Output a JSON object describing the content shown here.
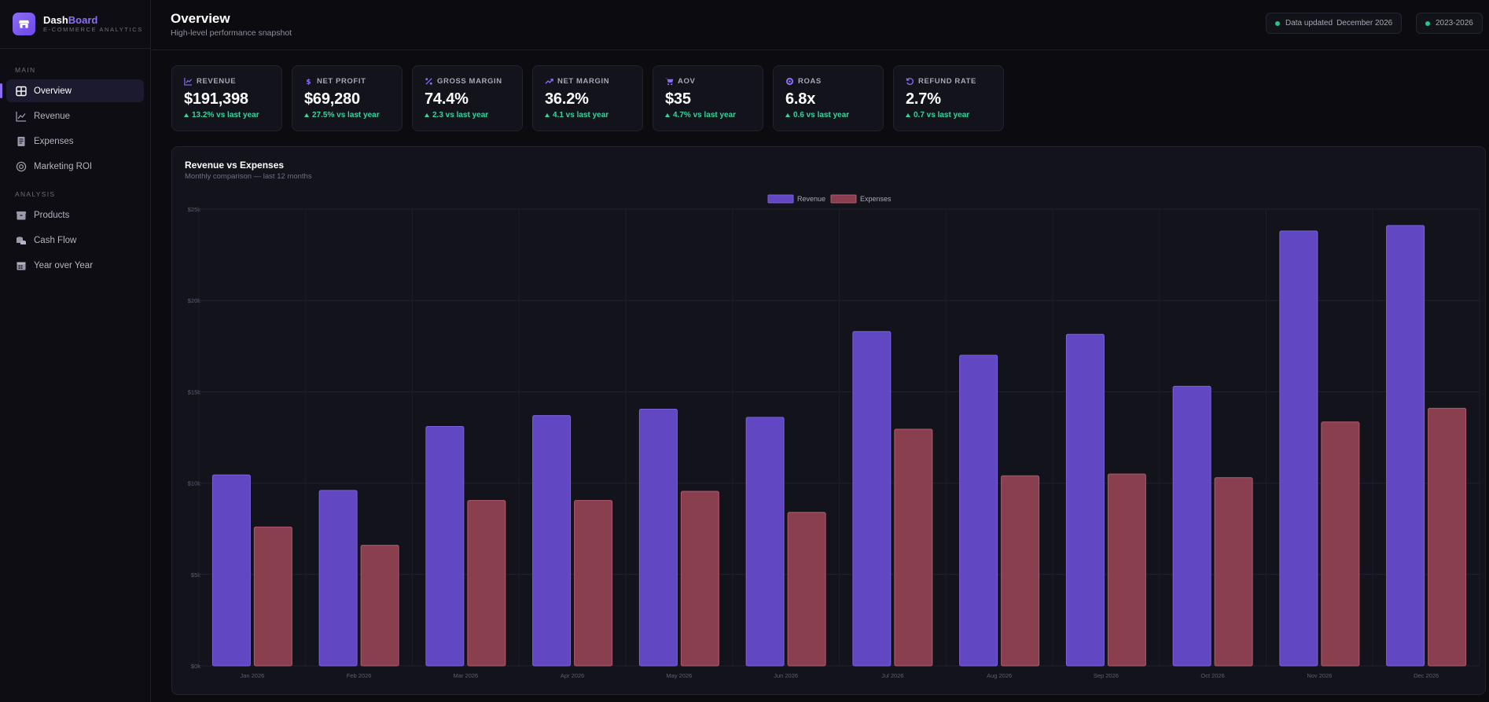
{
  "brand": {
    "name_a": "Dash",
    "name_b": "Board",
    "subtitle": "E-COMMERCE ANALYTICS"
  },
  "sidebar": {
    "sections": [
      {
        "label": "MAIN",
        "items": [
          {
            "label": "Overview",
            "icon": "grid-icon",
            "active": true
          },
          {
            "label": "Revenue",
            "icon": "line-chart-icon"
          },
          {
            "label": "Expenses",
            "icon": "receipt-icon"
          },
          {
            "label": "Marketing ROI",
            "icon": "target-icon"
          }
        ]
      },
      {
        "label": "ANALYSIS",
        "items": [
          {
            "label": "Products",
            "icon": "box-icon"
          },
          {
            "label": "Cash Flow",
            "icon": "coins-icon"
          },
          {
            "label": "Year over Year",
            "icon": "calendar-icon"
          }
        ]
      }
    ]
  },
  "header": {
    "title": "Overview",
    "subtitle": "High-level performance snapshot",
    "data_updated_label": "Data updated",
    "data_updated_value": "December 2026",
    "range": "2023-2026"
  },
  "kpis": [
    {
      "label": "REVENUE",
      "icon": "line-chart-icon",
      "value": "$191,398",
      "change": "13.2% vs last year"
    },
    {
      "label": "NET PROFIT",
      "icon": "dollar-icon",
      "value": "$69,280",
      "change": "27.5% vs last year"
    },
    {
      "label": "GROSS MARGIN",
      "icon": "percent-icon",
      "value": "74.4%",
      "change": "2.3 vs last year"
    },
    {
      "label": "NET MARGIN",
      "icon": "trend-up-icon",
      "value": "36.2%",
      "change": "4.1 vs last year"
    },
    {
      "label": "AOV",
      "icon": "cart-icon",
      "value": "$35",
      "change": "4.7% vs last year"
    },
    {
      "label": "ROAS",
      "icon": "target-icon",
      "value": "6.8x",
      "change": "0.6 vs last year"
    },
    {
      "label": "REFUND RATE",
      "icon": "refund-icon",
      "value": "2.7%",
      "change": "0.7 vs last year"
    }
  ],
  "chart": {
    "title": "Revenue vs Expenses",
    "subtitle": "Monthly comparison — last 12 months"
  },
  "colors": {
    "accent": "#8b6cf6",
    "revenue": "#6247c3",
    "expenses": "#8a3f4e",
    "positive": "#35d49b"
  },
  "chart_data": {
    "type": "bar",
    "categories": [
      "Jan 2026",
      "Feb 2026",
      "Mar 2026",
      "Apr 2026",
      "May 2026",
      "Jun 2026",
      "Jul 2026",
      "Aug 2026",
      "Sep 2026",
      "Oct 2026",
      "Nov 2026",
      "Dec 2026"
    ],
    "series": [
      {
        "name": "Revenue",
        "values": [
          10450,
          9600,
          13100,
          13700,
          14050,
          13600,
          18300,
          17000,
          18150,
          15300,
          23800,
          24100
        ]
      },
      {
        "name": "Expenses",
        "values": [
          7600,
          6600,
          9050,
          9050,
          9550,
          8400,
          12950,
          10400,
          10500,
          10300,
          13350,
          14100
        ]
      }
    ],
    "yticks": [
      "$0k",
      "$5k",
      "$10k",
      "$15k",
      "$20k",
      "$25k"
    ],
    "ylim": [
      0,
      25000
    ],
    "grid": true,
    "legend": "top-center"
  }
}
